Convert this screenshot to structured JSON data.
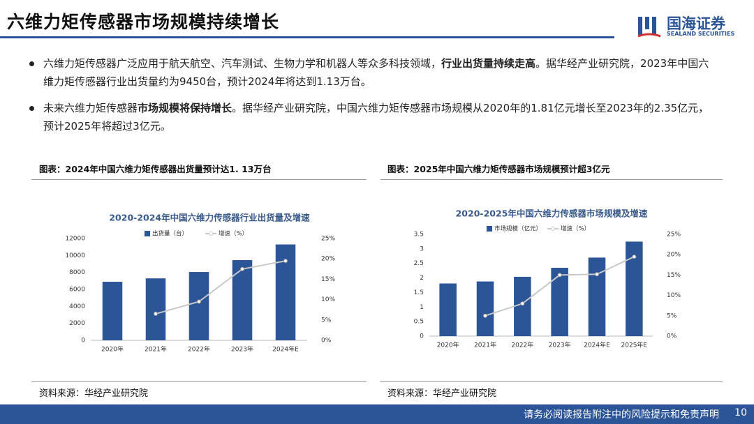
{
  "header": {
    "title": "六维力矩传感器市场规模持续增长",
    "logo": "国海证券",
    "logo_en": "SEALAND SECURITIES"
  },
  "bullets": [
    [
      {
        "text": "六维力矩传感器广泛应用于航天航空、汽车测试、生物力学和机器人等众多科技领域，",
        "bold": false
      },
      {
        "text": "行业出货量持续走高",
        "bold": true
      },
      {
        "text": "。据华经产业研究院，2023年中国六维力矩传感器行业出货量约为9450台，预计2024年将达到1.13万台。",
        "bold": false
      }
    ],
    [
      {
        "text": "未来六维力矩传感器",
        "bold": false
      },
      {
        "text": "市场规模将保持增长",
        "bold": true
      },
      {
        "text": "。据华经产业研究院，中国六维力矩传感器市场规模从2020年的1.81亿元增长至2023年的2.35亿元，预计2025年将超过3亿元。",
        "bold": false
      }
    ]
  ],
  "figures": [
    {
      "caption": "图表：2024年中国六维力矩传感器出货量预计达1. 13万台",
      "source": "资料来源：华经产业研究院"
    },
    {
      "caption": "图表：2025年中国六维力矩传感器市场规模预计超3亿元",
      "source": "资料来源：华经产业研究院"
    }
  ],
  "chart_data": [
    {
      "type": "bar-line",
      "title": "2020-2024年中国六维力传感器行业出货量及增速",
      "categories": [
        "2020年",
        "2021年",
        "2022年",
        "2023年",
        "2024年E"
      ],
      "series": [
        {
          "name": "出货量（台）",
          "color": "#2b5597",
          "values": [
            6900,
            7300,
            8050,
            9450,
            11300
          ]
        },
        {
          "name": "增速（%）",
          "color": "#c8c8c8",
          "axis": "y2",
          "values": [
            null,
            6.5,
            9.5,
            17.5,
            19.5
          ]
        }
      ],
      "ylim": [
        0,
        12000
      ],
      "yticks": [
        0,
        2000,
        4000,
        6000,
        8000,
        10000,
        12000
      ],
      "y2lim": [
        0,
        25
      ],
      "y2ticks": [
        {
          "value": 0,
          "label": "0%"
        },
        {
          "value": 5,
          "label": "5%"
        },
        {
          "value": 10,
          "label": "10%"
        },
        {
          "value": 15,
          "label": "15%"
        },
        {
          "value": 20,
          "label": "20%"
        },
        {
          "value": 25,
          "label": "25%"
        }
      ]
    },
    {
      "type": "bar-line",
      "title": "2020-2025年中国六维力传感器市场规模及增速",
      "categories": [
        "2020年",
        "2021年",
        "2022年",
        "2023年",
        "2024年E",
        "2025年E"
      ],
      "series": [
        {
          "name": "市场规模（亿元）",
          "color": "#2b5597",
          "values": [
            1.81,
            1.88,
            2.04,
            2.35,
            2.7,
            3.25
          ]
        },
        {
          "name": "增速（%）",
          "color": "#c8c8c8",
          "axis": "y2",
          "values": [
            null,
            5,
            8,
            15,
            15.2,
            19.5
          ]
        }
      ],
      "ylim": [
        0,
        3.5
      ],
      "yticks": [
        0,
        0.5,
        1,
        1.5,
        2,
        2.5,
        3,
        3.5
      ],
      "y2lim": [
        0,
        25
      ],
      "y2ticks": [
        {
          "value": 0,
          "label": "0%"
        },
        {
          "value": 5,
          "label": "5%"
        },
        {
          "value": 10,
          "label": "10%"
        },
        {
          "value": 15,
          "label": "15%"
        },
        {
          "value": 20,
          "label": "20%"
        },
        {
          "value": 25,
          "label": "25%"
        }
      ]
    }
  ],
  "footer": {
    "disclaimer": "请务必阅读报告附注中的风险提示和免责声明",
    "page": 10
  }
}
